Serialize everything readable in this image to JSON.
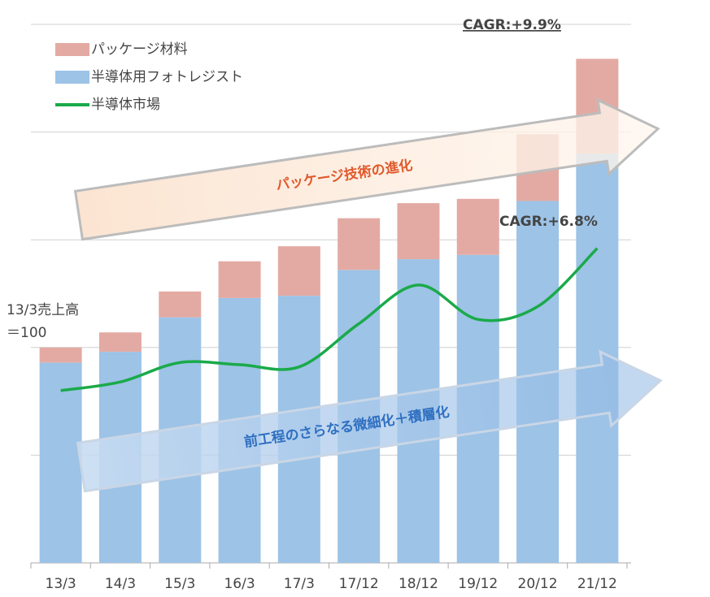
{
  "chart_data": {
    "type": "stacked_bar_line",
    "categories": [
      "13/3",
      "14/3",
      "15/3",
      "16/3",
      "17/3",
      "17/12",
      "18/12",
      "19/12",
      "20/12",
      "21/12"
    ],
    "series": [
      {
        "name": "半導体用フォトレジスト",
        "color": "#9dc3e6",
        "values": [
          93,
          98,
          114,
          123,
          124,
          136,
          141,
          143,
          168,
          190
        ]
      },
      {
        "name": "パッケージ材料",
        "color": "#e3aaa3",
        "values": [
          7,
          9,
          12,
          17,
          23,
          24,
          26,
          26,
          31,
          44
        ]
      },
      {
        "name": "半導体市場",
        "color": "#1aaa4a",
        "type": "line",
        "values": [
          80,
          84,
          93,
          92,
          91,
          111,
          129,
          113,
          119,
          146
        ]
      }
    ],
    "ylim": [
      0,
      250
    ],
    "yticks": [
      0,
      50,
      100,
      150,
      200,
      250
    ],
    "grid": true,
    "annotations": {
      "cagr_package": "CAGR:+9.9%",
      "cagr_market": "CAGR:+6.8%",
      "arrow_upper": "パッケージ技術の進化",
      "arrow_lower": "前工程のさらなる微細化＋積層化",
      "base_line1": "13/3売上高",
      "base_line2": "＝100"
    }
  }
}
